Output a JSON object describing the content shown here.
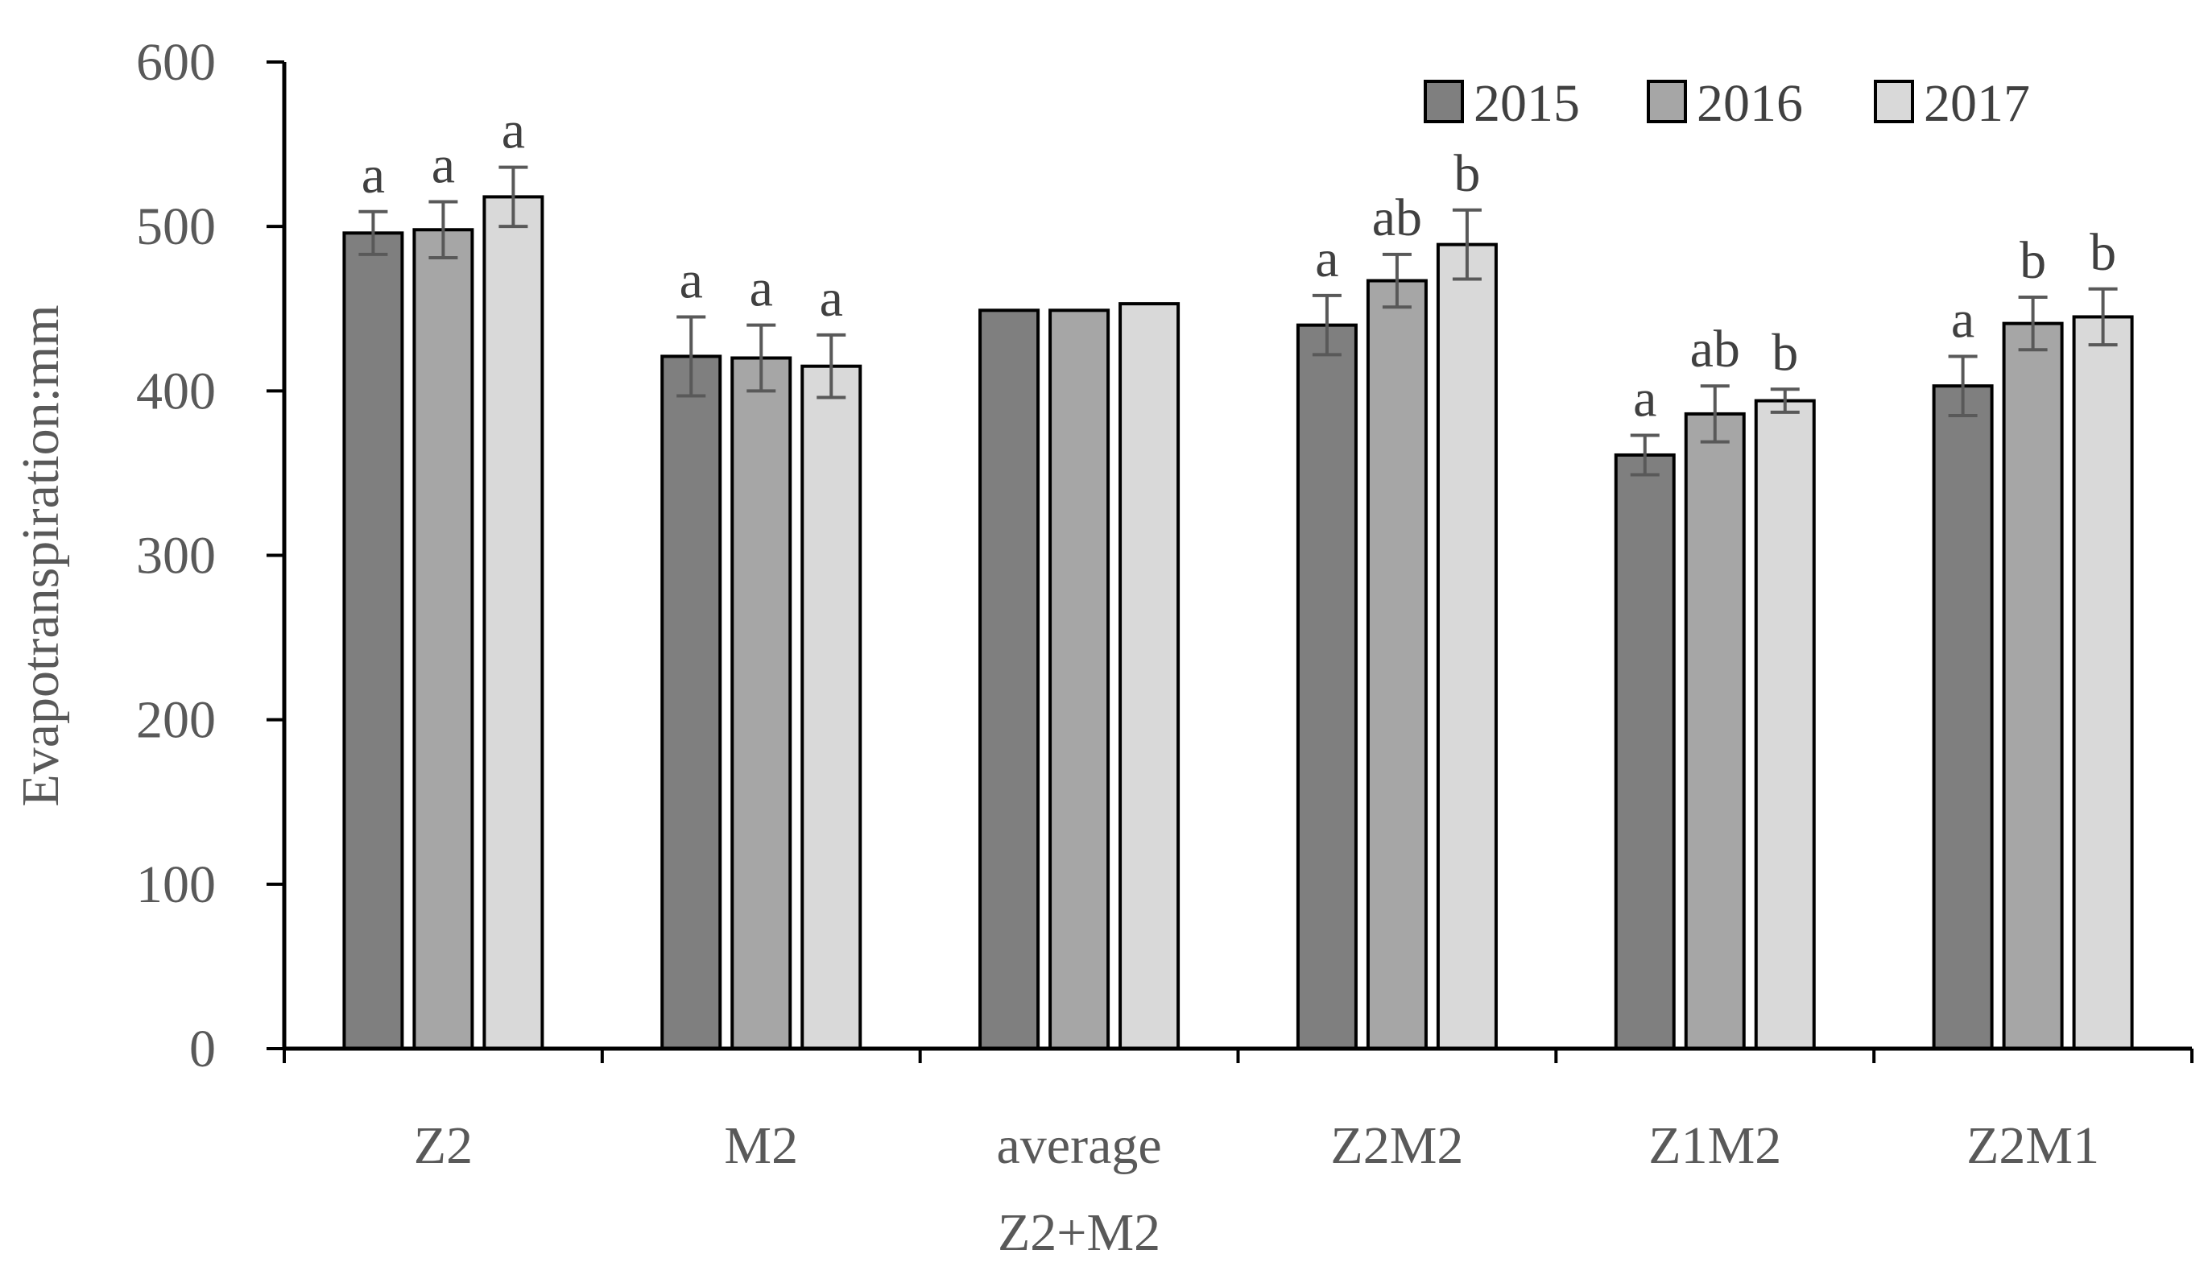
{
  "chart_data": {
    "type": "bar",
    "title": "",
    "xlabel": "",
    "ylabel": "Evapotranspiration:mm",
    "ylim": [
      0,
      600
    ],
    "yticks": [
      "0",
      "100",
      "200",
      "300",
      "400",
      "500",
      "600"
    ],
    "grid": false,
    "legend_position": "top-right",
    "categories": [
      {
        "line1": "Z2",
        "line2": ""
      },
      {
        "line1": "M2",
        "line2": ""
      },
      {
        "line1": "average",
        "line2": "Z2+M2"
      },
      {
        "line1": "Z2M2",
        "line2": ""
      },
      {
        "line1": "Z1M2",
        "line2": ""
      },
      {
        "line1": "Z2M1",
        "line2": ""
      }
    ],
    "series": [
      {
        "name": "2015",
        "color": "#7f7f7f",
        "values": [
          496,
          421,
          449,
          440,
          361,
          403
        ],
        "errors": [
          13,
          24,
          0,
          18,
          12,
          18
        ],
        "letters": [
          "a",
          "a",
          "",
          "a",
          "a",
          "a"
        ]
      },
      {
        "name": "2016",
        "color": "#a6a6a6",
        "values": [
          498,
          420,
          449,
          467,
          386,
          441
        ],
        "errors": [
          17,
          20,
          0,
          16,
          17,
          16
        ],
        "letters": [
          "a",
          "a",
          "",
          "ab",
          "ab",
          "b"
        ]
      },
      {
        "name": "2017",
        "color": "#d9d9d9",
        "values": [
          518,
          415,
          453,
          489,
          394,
          445
        ],
        "errors": [
          18,
          19,
          0,
          21,
          7,
          17
        ],
        "letters": [
          "a",
          "a",
          "",
          "b",
          "b",
          "b"
        ]
      }
    ]
  }
}
